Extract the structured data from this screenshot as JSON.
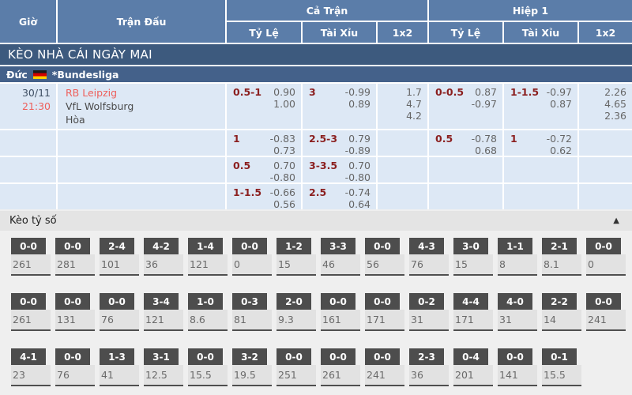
{
  "table_header": {
    "time": "Giờ",
    "match": "Trận Đấu",
    "full_time": "Cả Trận",
    "first_half": "Hiệp 1",
    "handicap": "Tỷ Lệ",
    "over_under": "Tài Xỉu",
    "one_x_two": "1x2"
  },
  "section_banner": "KÈO NHÀ CÁI NGÀY MAI",
  "league_row": {
    "country": "Đức",
    "flag_icon": "germany-flag",
    "league": "*Bundesliga"
  },
  "match": {
    "date": "30/11",
    "time": "21:30",
    "home": "RB Leipzig",
    "away": "VfL Wolfsburg",
    "draw": "Hòa"
  },
  "odds": [
    {
      "ft_hdp_line": "0.5-1",
      "ft_hdp_o1": "0.90",
      "ft_hdp_o2": "1.00",
      "ft_ou_line": "3",
      "ft_ou_o1": "-0.99",
      "ft_ou_o2": "0.89",
      "ft_1x2": [
        "1.7",
        "4.7",
        "4.2"
      ],
      "h1_hdp_line": "0-0.5",
      "h1_hdp_o1": "0.87",
      "h1_hdp_o2": "-0.97",
      "h1_ou_line": "1-1.5",
      "h1_ou_o1": "-0.97",
      "h1_ou_o2": "0.87",
      "h1_1x2": [
        "2.26",
        "4.65",
        "2.36"
      ]
    },
    {
      "ft_hdp_line": "1",
      "ft_hdp_o1": "-0.83",
      "ft_hdp_o2": "0.73",
      "ft_ou_line": "2.5-3",
      "ft_ou_o1": "0.79",
      "ft_ou_o2": "-0.89",
      "ft_1x2": [
        "",
        "",
        ""
      ],
      "h1_hdp_line": "0.5",
      "h1_hdp_o1": "-0.78",
      "h1_hdp_o2": "0.68",
      "h1_ou_line": "1",
      "h1_ou_o1": "-0.72",
      "h1_ou_o2": "0.62",
      "h1_1x2": [
        "",
        "",
        ""
      ]
    },
    {
      "ft_hdp_line": "0.5",
      "ft_hdp_o1": "0.70",
      "ft_hdp_o2": "-0.80",
      "ft_ou_line": "3-3.5",
      "ft_ou_o1": "0.70",
      "ft_ou_o2": "-0.80",
      "ft_1x2": [
        "",
        "",
        ""
      ],
      "h1_hdp_line": "",
      "h1_hdp_o1": "",
      "h1_hdp_o2": "",
      "h1_ou_line": "",
      "h1_ou_o1": "",
      "h1_ou_o2": "",
      "h1_1x2": [
        "",
        "",
        ""
      ]
    },
    {
      "ft_hdp_line": "1-1.5",
      "ft_hdp_o1": "-0.66",
      "ft_hdp_o2": "0.56",
      "ft_ou_line": "2.5",
      "ft_ou_o1": "-0.74",
      "ft_ou_o2": "0.64",
      "ft_1x2": [
        "",
        "",
        ""
      ],
      "h1_hdp_line": "",
      "h1_hdp_o1": "",
      "h1_hdp_o2": "",
      "h1_ou_line": "",
      "h1_ou_o1": "",
      "h1_ou_o2": "",
      "h1_1x2": [
        "",
        "",
        ""
      ]
    }
  ],
  "score_odds": {
    "title": "Kèo tỷ số",
    "collapse_icon": "▲",
    "rows": [
      [
        {
          "score": "0-0",
          "value": "261"
        },
        {
          "score": "0-0",
          "value": "281"
        },
        {
          "score": "2-4",
          "value": "101"
        },
        {
          "score": "4-2",
          "value": "36"
        },
        {
          "score": "1-4",
          "value": "121"
        },
        {
          "score": "0-0",
          "value": "0"
        },
        {
          "score": "1-2",
          "value": "15"
        },
        {
          "score": "3-3",
          "value": "46"
        },
        {
          "score": "0-0",
          "value": "56"
        },
        {
          "score": "4-3",
          "value": "76"
        },
        {
          "score": "3-0",
          "value": "15"
        },
        {
          "score": "1-1",
          "value": "8"
        },
        {
          "score": "2-1",
          "value": "8.1"
        },
        {
          "score": "0-0",
          "value": "0"
        }
      ],
      [
        {
          "score": "0-0",
          "value": "261"
        },
        {
          "score": "0-0",
          "value": "131"
        },
        {
          "score": "0-0",
          "value": "76"
        },
        {
          "score": "3-4",
          "value": "121"
        },
        {
          "score": "1-0",
          "value": "8.6"
        },
        {
          "score": "0-3",
          "value": "81"
        },
        {
          "score": "2-0",
          "value": "9.3"
        },
        {
          "score": "0-0",
          "value": "161"
        },
        {
          "score": "0-0",
          "value": "171"
        },
        {
          "score": "0-2",
          "value": "31"
        },
        {
          "score": "4-4",
          "value": "171"
        },
        {
          "score": "4-0",
          "value": "31"
        },
        {
          "score": "2-2",
          "value": "14"
        },
        {
          "score": "0-0",
          "value": "241"
        }
      ],
      [
        {
          "score": "4-1",
          "value": "23"
        },
        {
          "score": "0-0",
          "value": "76"
        },
        {
          "score": "1-3",
          "value": "41"
        },
        {
          "score": "3-1",
          "value": "12.5"
        },
        {
          "score": "0-0",
          "value": "15.5"
        },
        {
          "score": "3-2",
          "value": "19.5"
        },
        {
          "score": "0-0",
          "value": "251"
        },
        {
          "score": "0-0",
          "value": "261"
        },
        {
          "score": "0-0",
          "value": "241"
        },
        {
          "score": "2-3",
          "value": "36"
        },
        {
          "score": "0-4",
          "value": "201"
        },
        {
          "score": "0-0",
          "value": "141"
        },
        {
          "score": "0-1",
          "value": "15.5"
        }
      ]
    ]
  },
  "colors": {
    "header_blue": "#5b7da9",
    "banner_blue": "#3d5a7e",
    "league_blue": "#44618a",
    "row_blue": "#dde8f5",
    "handicap_maroon": "#8b1f1f",
    "accent_red": "#ee5f5b",
    "score_box_gray": "#4d4d4d"
  }
}
